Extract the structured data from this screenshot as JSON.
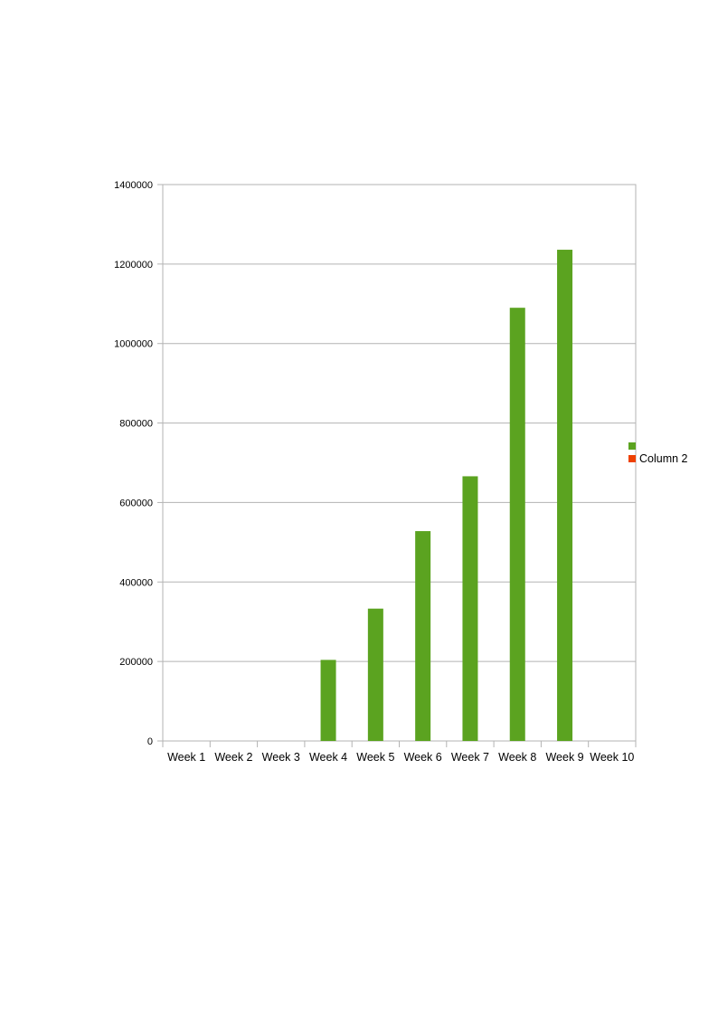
{
  "chart_data": {
    "type": "bar",
    "title": "",
    "xlabel": "",
    "ylabel": "",
    "categories": [
      "Week 1",
      "Week 2",
      "Week 3",
      "Week 4",
      "Week 5",
      "Week 6",
      "Week 7",
      "Week 8",
      "Week 9",
      "Week 10"
    ],
    "series": [
      {
        "name": "",
        "color": "#5ba320",
        "values": [
          0,
          0,
          0,
          204000,
          333000,
          528000,
          666000,
          1090000,
          1236000,
          0
        ]
      },
      {
        "name": "Column 2",
        "color": "#ee4000",
        "values": [
          0,
          0,
          0,
          0,
          0,
          0,
          0,
          0,
          0,
          0
        ]
      }
    ],
    "ylim": [
      0,
      1400000
    ],
    "yticks": [
      0,
      200000,
      400000,
      600000,
      800000,
      1000000,
      1200000,
      1400000
    ],
    "ytick_labels": [
      "0",
      "200000",
      "400000",
      "600000",
      "800000",
      "1000000",
      "1200000",
      "1400000"
    ],
    "grid": true,
    "legend_position": "right"
  }
}
